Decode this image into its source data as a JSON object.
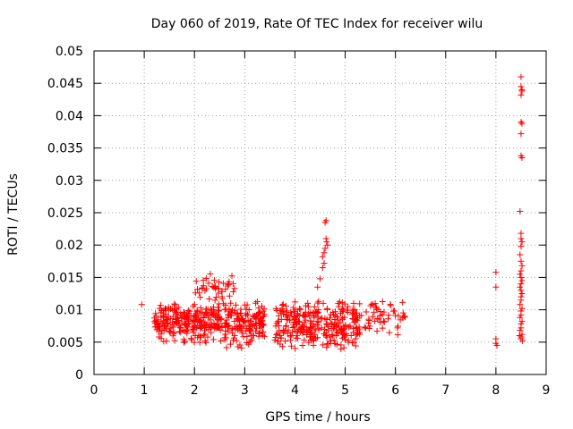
{
  "chart_data": {
    "type": "scatter",
    "title": "Day 060 of 2019, Rate Of TEC Index for receiver wilu",
    "xlabel": "GPS time / hours",
    "ylabel": "ROTI / TECUs",
    "xlim": [
      0,
      9
    ],
    "ylim": [
      0,
      0.05
    ],
    "xticks": [
      "0",
      "1",
      "2",
      "3",
      "4",
      "5",
      "6",
      "7",
      "8",
      "9"
    ],
    "yticks": [
      "0",
      "0.005",
      "0.01",
      "0.015",
      "0.02",
      "0.025",
      "0.03",
      "0.035",
      "0.04",
      "0.045",
      "0.05"
    ],
    "grid": true,
    "marker": "+",
    "color": "#ff0000",
    "clusters": [
      {
        "x_range": [
          1.2,
          3.4
        ],
        "y_range": [
          0.0035,
          0.0125
        ],
        "count": 420
      },
      {
        "x_range": [
          2.0,
          2.8
        ],
        "y_range": [
          0.011,
          0.016
        ],
        "count": 40
      },
      {
        "x_range": [
          3.6,
          5.3
        ],
        "y_range": [
          0.003,
          0.0125
        ],
        "count": 300
      },
      {
        "x_range": [
          5.3,
          6.2
        ],
        "y_range": [
          0.005,
          0.0125
        ],
        "count": 50
      }
    ],
    "series": [
      {
        "name": "scatter",
        "points": [
          [
            0.95,
            0.0108
          ],
          [
            4.55,
            0.0182
          ],
          [
            4.58,
            0.0188
          ],
          [
            4.6,
            0.0195
          ],
          [
            4.62,
            0.021
          ],
          [
            4.63,
            0.0205
          ],
          [
            4.65,
            0.02
          ],
          [
            4.6,
            0.0235
          ],
          [
            4.62,
            0.0238
          ],
          [
            4.55,
            0.0165
          ],
          [
            4.58,
            0.0172
          ],
          [
            4.5,
            0.0148
          ],
          [
            4.45,
            0.0135
          ],
          [
            8.0,
            0.0158
          ],
          [
            8.0,
            0.0135
          ],
          [
            8.0,
            0.0055
          ],
          [
            8.0,
            0.0048
          ],
          [
            8.02,
            0.0045
          ],
          [
            8.5,
            0.046
          ],
          [
            8.5,
            0.0445
          ],
          [
            8.52,
            0.044
          ],
          [
            8.5,
            0.0432
          ],
          [
            8.52,
            0.0438
          ],
          [
            8.5,
            0.039
          ],
          [
            8.52,
            0.0388
          ],
          [
            8.5,
            0.0372
          ],
          [
            8.5,
            0.0338
          ],
          [
            8.52,
            0.0335
          ],
          [
            8.48,
            0.0252
          ],
          [
            8.5,
            0.0218
          ],
          [
            8.5,
            0.021
          ],
          [
            8.52,
            0.0205
          ],
          [
            8.5,
            0.0198
          ],
          [
            8.48,
            0.0185
          ],
          [
            8.5,
            0.0175
          ],
          [
            8.52,
            0.0168
          ],
          [
            8.5,
            0.016
          ],
          [
            8.48,
            0.0155
          ],
          [
            8.5,
            0.015
          ],
          [
            8.52,
            0.0145
          ],
          [
            8.5,
            0.014
          ],
          [
            8.48,
            0.0135
          ],
          [
            8.5,
            0.013
          ],
          [
            8.52,
            0.0125
          ],
          [
            8.5,
            0.012
          ],
          [
            8.5,
            0.0115
          ],
          [
            8.48,
            0.0108
          ],
          [
            8.52,
            0.0102
          ],
          [
            8.5,
            0.0098
          ],
          [
            8.5,
            0.0092
          ],
          [
            8.48,
            0.0088
          ],
          [
            8.52,
            0.0082
          ],
          [
            8.5,
            0.0078
          ],
          [
            8.5,
            0.0072
          ],
          [
            8.48,
            0.0068
          ],
          [
            8.52,
            0.0062
          ],
          [
            8.5,
            0.0058
          ],
          [
            8.5,
            0.0055
          ],
          [
            8.53,
            0.0052
          ],
          [
            8.47,
            0.006
          ]
        ]
      }
    ]
  }
}
